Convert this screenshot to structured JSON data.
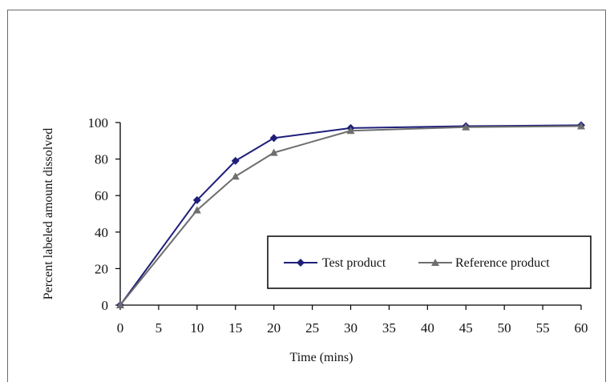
{
  "chart_data": {
    "type": "line",
    "title": "",
    "xlabel": "Time (mins)",
    "ylabel": "Percent labeled  amount dissolved",
    "xlim": [
      0,
      60
    ],
    "ylim": [
      0,
      100
    ],
    "xticks": [
      0,
      5,
      10,
      15,
      20,
      25,
      30,
      35,
      40,
      45,
      50,
      55,
      60
    ],
    "yticks": [
      0,
      20,
      40,
      60,
      80,
      100
    ],
    "grid": false,
    "legend_position": "inside-bottom-right",
    "series": [
      {
        "name": "Test product",
        "color": "#1f1f7a",
        "marker": "diamond",
        "x": [
          0,
          10,
          15,
          20,
          30,
          45,
          60
        ],
        "y": [
          0,
          57.5,
          79,
          91.5,
          97,
          98,
          98.5
        ]
      },
      {
        "name": "Reference product",
        "color": "#6e6e6e",
        "marker": "triangle",
        "x": [
          0,
          10,
          15,
          20,
          30,
          45,
          60
        ],
        "y": [
          0,
          52,
          70.5,
          83.5,
          95.5,
          97.5,
          98
        ]
      }
    ]
  }
}
